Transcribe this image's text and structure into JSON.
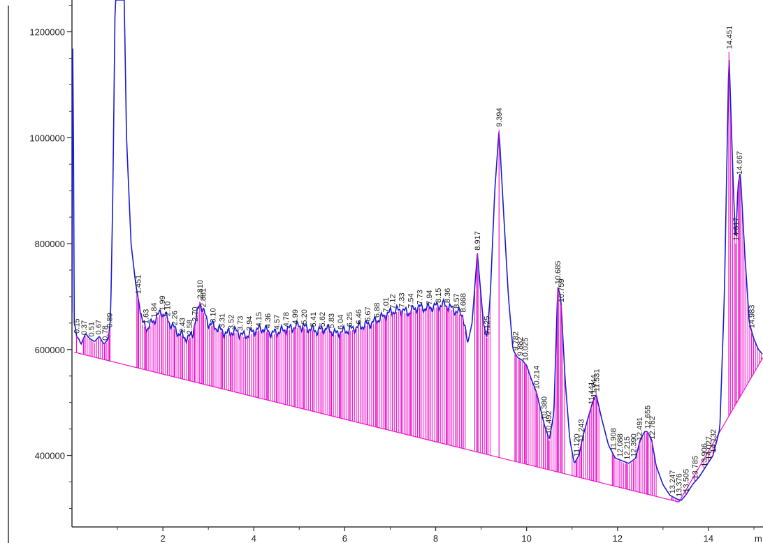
{
  "chart_data": {
    "type": "line",
    "title": "",
    "xlabel": "m",
    "ylabel": "",
    "xlim": [
      0,
      15.2
    ],
    "ylim": [
      265000,
      1260000
    ],
    "x_ticks": [
      {
        "value": 2,
        "label": "2"
      },
      {
        "value": 4,
        "label": "4"
      },
      {
        "value": 6,
        "label": "6"
      },
      {
        "value": 8,
        "label": "8"
      },
      {
        "value": 10,
        "label": "10"
      },
      {
        "value": 12,
        "label": "12"
      },
      {
        "value": 14,
        "label": "14"
      }
    ],
    "y_ticks": [
      {
        "value": 400000,
        "label": "400000"
      },
      {
        "value": 600000,
        "label": "600000"
      },
      {
        "value": 800000,
        "label": "800000"
      },
      {
        "value": 1000000,
        "label": "1000000"
      },
      {
        "value": 1200000,
        "label": "1200000"
      }
    ],
    "grid": false,
    "colors": {
      "signal": "#1a1ad4",
      "integration": "#ee11cc",
      "axis": "#333333"
    },
    "baseline": {
      "x": [
        0.05,
        13.35,
        15.2
      ],
      "y": [
        595000,
        312000,
        585000
      ]
    },
    "signal": {
      "x": [
        0.0,
        0.02,
        0.05,
        0.08,
        0.1,
        0.15,
        0.2,
        0.3,
        0.4,
        0.5,
        0.6,
        0.7,
        0.8,
        0.85,
        0.9,
        0.95,
        1.0,
        1.05,
        1.1,
        1.15,
        1.2,
        1.3,
        1.4,
        1.45,
        1.55,
        1.65,
        1.75,
        1.85,
        1.95,
        2.05,
        2.15,
        2.25,
        2.35,
        2.45,
        2.55,
        2.65,
        2.75,
        2.81,
        2.9,
        3.0,
        3.2,
        3.4,
        3.6,
        3.8,
        4.0,
        4.2,
        4.4,
        4.6,
        4.8,
        5.0,
        5.2,
        5.4,
        5.6,
        5.8,
        6.0,
        6.2,
        6.4,
        6.6,
        6.8,
        7.0,
        7.2,
        7.4,
        7.6,
        7.8,
        8.0,
        8.2,
        8.4,
        8.6,
        8.7,
        8.8,
        8.917,
        9.05,
        9.125,
        9.2,
        9.3,
        9.394,
        9.5,
        9.6,
        9.7,
        9.8,
        9.9,
        10.0,
        10.1,
        10.214,
        10.3,
        10.4,
        10.5,
        10.6,
        10.685,
        10.75,
        10.85,
        10.95,
        11.05,
        11.15,
        11.25,
        11.35,
        11.45,
        11.531,
        11.65,
        11.8,
        11.95,
        12.1,
        12.25,
        12.4,
        12.5,
        12.6,
        12.655,
        12.75,
        12.85,
        13.0,
        13.15,
        13.3,
        13.4,
        13.5,
        13.65,
        13.8,
        13.95,
        14.1,
        14.25,
        14.35,
        14.451,
        14.55,
        14.6,
        14.65,
        14.7,
        14.8,
        14.9,
        15.0,
        15.1,
        15.2
      ],
      "y": [
        670000,
        1260000,
        650000,
        640000,
        625000,
        620000,
        610000,
        630000,
        620000,
        615000,
        625000,
        610000,
        620000,
        660000,
        900000,
        1260000,
        1260000,
        1260000,
        1260000,
        1260000,
        1000000,
        800000,
        725000,
        700000,
        650000,
        640000,
        650000,
        660000,
        670000,
        665000,
        650000,
        640000,
        630000,
        625000,
        620000,
        630000,
        665000,
        690000,
        670000,
        650000,
        640000,
        630000,
        635000,
        625000,
        635000,
        640000,
        630000,
        635000,
        640000,
        645000,
        640000,
        635000,
        640000,
        630000,
        635000,
        640000,
        645000,
        650000,
        660000,
        670000,
        675000,
        670000,
        680000,
        678000,
        682000,
        685000,
        675000,
        665000,
        610000,
        650000,
        782000,
        650000,
        622000,
        700000,
        900000,
        1015000,
        850000,
        700000,
        600000,
        585000,
        580000,
        570000,
        545000,
        520000,
        490000,
        455000,
        430000,
        480000,
        718000,
        700000,
        540000,
        430000,
        385000,
        400000,
        440000,
        470000,
        500000,
        515000,
        470000,
        420000,
        395000,
        390000,
        385000,
        395000,
        430000,
        445000,
        445000,
        430000,
        380000,
        345000,
        325000,
        318000,
        315000,
        325000,
        345000,
        360000,
        380000,
        400000,
        450000,
        700000,
        1162000,
        900000,
        800000,
        910000,
        935000,
        780000,
        650000,
        620000,
        600000,
        590000
      ]
    },
    "peaks": [
      {
        "x": 0.1,
        "label": "0.15"
      },
      {
        "x": 0.26,
        "label": "0.37"
      },
      {
        "x": 0.42,
        "label": "0.51"
      },
      {
        "x": 0.58,
        "label": "0.67"
      },
      {
        "x": 0.72,
        "label": "0.78"
      },
      {
        "x": 0.82,
        "label": "0.89"
      },
      {
        "x": 1.451,
        "label": "1.451"
      },
      {
        "x": 1.62,
        "label": "1.63"
      },
      {
        "x": 1.8,
        "label": "1.84"
      },
      {
        "x": 1.98,
        "label": "1.99"
      },
      {
        "x": 2.1,
        "label": "2.10"
      },
      {
        "x": 2.25,
        "label": "2.26"
      },
      {
        "x": 2.42,
        "label": "2.43"
      },
      {
        "x": 2.58,
        "label": "2.58"
      },
      {
        "x": 2.7,
        "label": "2.70"
      },
      {
        "x": 2.81,
        "label": "2.810"
      },
      {
        "x": 2.88,
        "label": "2.881"
      },
      {
        "x": 3.1,
        "label": "3.10"
      },
      {
        "x": 3.3,
        "label": "3.31"
      },
      {
        "x": 3.5,
        "label": "3.52"
      },
      {
        "x": 3.7,
        "label": "3.73"
      },
      {
        "x": 3.9,
        "label": "3.94"
      },
      {
        "x": 4.1,
        "label": "4.15"
      },
      {
        "x": 4.3,
        "label": "4.36"
      },
      {
        "x": 4.5,
        "label": "4.57"
      },
      {
        "x": 4.7,
        "label": "4.78"
      },
      {
        "x": 4.9,
        "label": "4.99"
      },
      {
        "x": 5.1,
        "label": "5.20"
      },
      {
        "x": 5.3,
        "label": "5.41"
      },
      {
        "x": 5.5,
        "label": "5.62"
      },
      {
        "x": 5.7,
        "label": "5.83"
      },
      {
        "x": 5.9,
        "label": "6.04"
      },
      {
        "x": 6.1,
        "label": "6.25"
      },
      {
        "x": 6.3,
        "label": "6.46"
      },
      {
        "x": 6.5,
        "label": "6.67"
      },
      {
        "x": 6.7,
        "label": "6.88"
      },
      {
        "x": 6.9,
        "label": "7.01"
      },
      {
        "x": 7.05,
        "label": "7.12"
      },
      {
        "x": 7.25,
        "label": "7.33"
      },
      {
        "x": 7.45,
        "label": "7.54"
      },
      {
        "x": 7.65,
        "label": "7.73"
      },
      {
        "x": 7.85,
        "label": "7.94"
      },
      {
        "x": 8.05,
        "label": "8.15"
      },
      {
        "x": 8.25,
        "label": "8.36"
      },
      {
        "x": 8.45,
        "label": "8.57"
      },
      {
        "x": 8.6,
        "label": "8.668"
      },
      {
        "x": 8.917,
        "label": "8.917"
      },
      {
        "x": 9.125,
        "label": "9.125"
      },
      {
        "x": 9.394,
        "label": "9.394"
      },
      {
        "x": 9.75,
        "label": "9.782"
      },
      {
        "x": 9.85,
        "label": "9.882"
      },
      {
        "x": 9.97,
        "label": "10.025"
      },
      {
        "x": 10.214,
        "label": "10.214"
      },
      {
        "x": 10.38,
        "label": "10.380"
      },
      {
        "x": 10.48,
        "label": "10.492"
      },
      {
        "x": 10.685,
        "label": "10.685"
      },
      {
        "x": 10.76,
        "label": "10.759"
      },
      {
        "x": 11.1,
        "label": "11.120"
      },
      {
        "x": 11.2,
        "label": "11.243"
      },
      {
        "x": 11.42,
        "label": "11.441"
      },
      {
        "x": 11.47,
        "label": "11.444"
      },
      {
        "x": 11.531,
        "label": "11.531"
      },
      {
        "x": 11.9,
        "label": "11.908"
      },
      {
        "x": 12.05,
        "label": "12.088"
      },
      {
        "x": 12.2,
        "label": "12.215"
      },
      {
        "x": 12.35,
        "label": "12.390"
      },
      {
        "x": 12.48,
        "label": "12.491"
      },
      {
        "x": 12.655,
        "label": "12.655"
      },
      {
        "x": 12.76,
        "label": "12.762"
      },
      {
        "x": 13.2,
        "label": "13.247"
      },
      {
        "x": 13.35,
        "label": "13.376"
      },
      {
        "x": 13.5,
        "label": "13.505"
      },
      {
        "x": 13.7,
        "label": "13.785"
      },
      {
        "x": 13.9,
        "label": "13.906"
      },
      {
        "x": 14.0,
        "label": "14.027"
      },
      {
        "x": 14.1,
        "label": "14.132"
      },
      {
        "x": 14.451,
        "label": "14.451"
      },
      {
        "x": 14.6,
        "label": "14.617"
      },
      {
        "x": 14.68,
        "label": "14.667"
      },
      {
        "x": 14.95,
        "label": "14.983"
      }
    ]
  }
}
